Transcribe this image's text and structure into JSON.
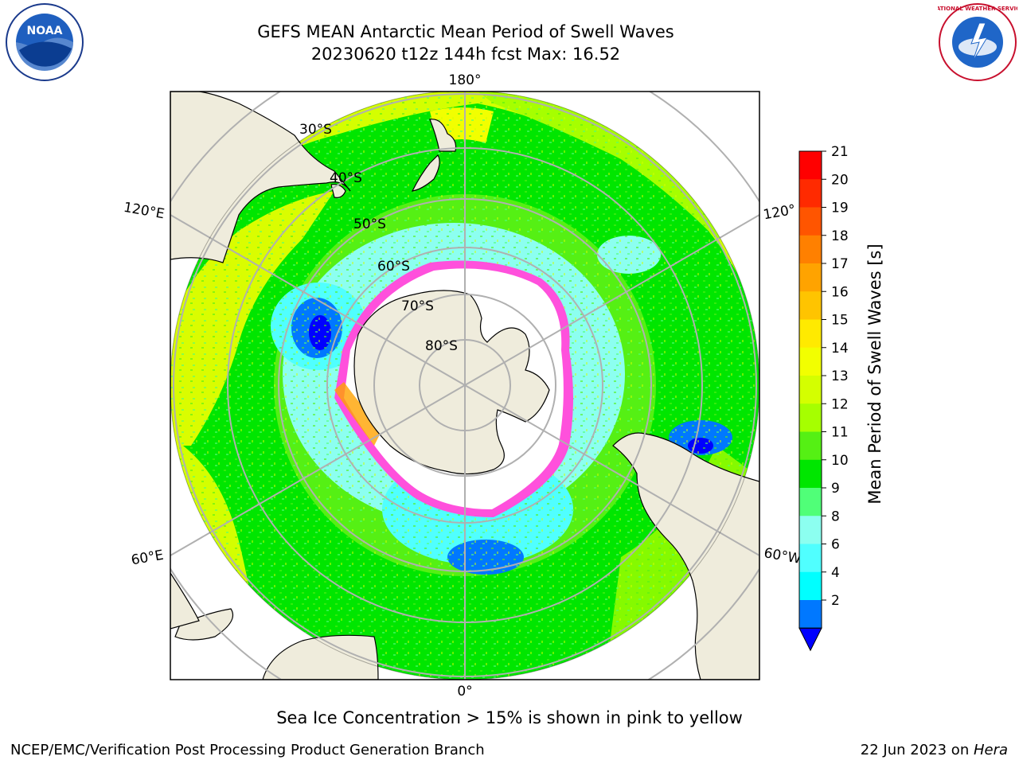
{
  "header": {
    "title": "GEFS MEAN Antarctic Mean Period of Swell Waves",
    "subtitle": "20230620 t12z 144h fcst   Max: 16.52"
  },
  "logos": {
    "left": "NOAA",
    "right": "NATIONAL WEATHER SERVICE"
  },
  "map": {
    "projection": "south-polar-stereographic",
    "longitude_labels": {
      "top": "180°",
      "bottom": "0°",
      "upper_left": "120°E",
      "upper_right": "120°",
      "lower_left": "60°E",
      "lower_right": "60°W"
    },
    "latitude_labels": [
      "30°S",
      "40°S",
      "50°S",
      "60°S",
      "70°S",
      "80°S"
    ]
  },
  "colorbar": {
    "label": "Mean Period of Swell Waves [s]",
    "ticks": [
      "21",
      "20",
      "19",
      "18",
      "17",
      "16",
      "15",
      "14",
      "13",
      "12",
      "11",
      "10",
      "9",
      "8",
      "6",
      "4",
      "2"
    ],
    "colors_top_to_bottom": [
      "#ff0000",
      "#ff2a00",
      "#ff5500",
      "#ff8000",
      "#ffa300",
      "#ffc400",
      "#ffea00",
      "#f2ff00",
      "#d4ff00",
      "#a6ff00",
      "#55f014",
      "#00e600",
      "#50ff78",
      "#8cfff0",
      "#50ffff",
      "#00ffff",
      "#0078ff"
    ],
    "extend_color": "#0000ff"
  },
  "caption": "Sea Ice Concentration > 15% is shown in pink to yellow",
  "footer": {
    "left": "NCEP/EMC/Verification Post Processing Product Generation Branch",
    "date": "22 Jun 2023 on ",
    "host": "Hera"
  }
}
